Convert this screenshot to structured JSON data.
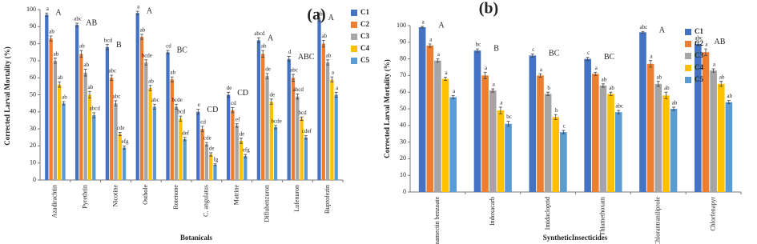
{
  "chart_data": [
    {
      "type": "bar",
      "panel_label": "(a)",
      "y_label": "Corrected Larval Mortality (%)",
      "x_label": "Botanicals",
      "categories": [
        "Azadirachtin",
        "Pyrethrin",
        "Nicotine",
        "Osthole",
        "Rotenone",
        "C. angulatus",
        "Matrine",
        "Diflubenzuron",
        "Lufenuron",
        "Buprofezin"
      ],
      "group_letters": [
        "A",
        "AB",
        "B",
        "A",
        "BC",
        "CD",
        "CD",
        "A",
        "ABC",
        "A"
      ],
      "series": [
        {
          "name": "C1",
          "color": "#4472c4",
          "values": [
            97,
            91,
            78,
            98,
            75,
            40,
            50,
            82,
            71,
            94
          ],
          "errors": [
            1,
            1,
            1.5,
            1,
            1,
            1.5,
            1.5,
            1.5,
            1.5,
            1
          ],
          "letters": [
            "a",
            "abc",
            "bcd",
            "a",
            "cd",
            "e",
            "de",
            "abcd",
            "d",
            "ab"
          ]
        },
        {
          "name": "C2",
          "color": "#ed7d31",
          "values": [
            83,
            74,
            60,
            84,
            59,
            30,
            41,
            74,
            60,
            80
          ],
          "errors": [
            1.5,
            2,
            1.5,
            1.5,
            1.5,
            1.5,
            1.5,
            2,
            2,
            2
          ],
          "letters": [
            "ab",
            "ab",
            "abc",
            "ab",
            "ab",
            "cd",
            "cd",
            "ab",
            "abc",
            "ab"
          ]
        },
        {
          "name": "C3",
          "color": "#a5a5a5",
          "values": [
            70,
            63,
            45,
            69,
            43,
            21,
            32,
            61,
            49,
            69
          ],
          "errors": [
            1.5,
            2,
            1.5,
            1.5,
            1.5,
            1,
            1,
            1.5,
            1.5,
            1.5
          ],
          "letters": [
            "ab",
            "ab",
            "abc",
            "bcde",
            "bcde",
            "cde",
            "ef",
            "de",
            "abcd",
            "ab"
          ]
        },
        {
          "name": "C4",
          "color": "#ffc000",
          "values": [
            56,
            50,
            27,
            54,
            36,
            15,
            23,
            46,
            36,
            59
          ],
          "errors": [
            1.5,
            2,
            1,
            1.5,
            1.5,
            1,
            1.5,
            1.5,
            1,
            1.5
          ],
          "letters": [
            "ab",
            "ab",
            "cde",
            "ab",
            "bcd",
            "de",
            "de",
            "de",
            "bcd",
            "a"
          ]
        },
        {
          "name": "C5",
          "color": "#5b9bd5",
          "values": [
            45,
            38,
            19,
            43,
            24,
            9,
            14,
            31,
            25,
            50
          ],
          "errors": [
            1,
            1.5,
            1,
            1.5,
            1,
            0.5,
            1,
            1,
            1,
            1.5
          ],
          "letters": [
            "ab",
            "abcd",
            "efg",
            "abc",
            "def",
            "fg",
            "efg",
            "bcde",
            "cdef",
            "a"
          ]
        }
      ],
      "ylim": [
        0,
        100
      ],
      "yticks": [
        0,
        10,
        20,
        30,
        40,
        50,
        60,
        70,
        80,
        90,
        100
      ],
      "legend": "right"
    },
    {
      "type": "bar",
      "panel_label": "(b)",
      "y_label": "Corrected Larval Mortality (%)",
      "x_label": "SyntheticInsecticides",
      "categories": [
        "Emamectin benzoate",
        "Indoxacarb",
        "Imidacloprid",
        "Thiamethoxam",
        "Chlorantraniliprole",
        "Chlorfenapyr"
      ],
      "group_letters": [
        "A",
        "B",
        "BC",
        "BC",
        "A",
        "AB"
      ],
      "series": [
        {
          "name": "C1",
          "color": "#4472c4",
          "values": [
            99,
            85,
            82,
            80,
            96,
            89
          ],
          "errors": [
            0.5,
            1,
            1,
            1,
            0.5,
            1
          ],
          "letters": [
            "a",
            "bc",
            "c",
            "c",
            "abc",
            "abc"
          ]
        },
        {
          "name": "C2",
          "color": "#ed7d31",
          "values": [
            88,
            70,
            70,
            71,
            77,
            84
          ],
          "errors": [
            1,
            2,
            1,
            1,
            2,
            2
          ],
          "letters": [
            "a",
            "a",
            "a",
            "a",
            "a",
            "a"
          ]
        },
        {
          "name": "C3",
          "color": "#a5a5a5",
          "values": [
            79,
            61,
            59,
            64,
            65,
            73
          ],
          "errors": [
            1,
            1,
            1,
            1,
            1.5,
            1
          ],
          "letters": [
            "a",
            "a",
            "b",
            "ab",
            "ab",
            "a"
          ]
        },
        {
          "name": "C4",
          "color": "#ffc000",
          "values": [
            68,
            49,
            45,
            59,
            58,
            65
          ],
          "errors": [
            1,
            2,
            1.5,
            1,
            2,
            1.5
          ],
          "letters": [
            "a",
            "a",
            "b",
            "ab",
            "ab",
            "ab"
          ]
        },
        {
          "name": "C5",
          "color": "#5b9bd5",
          "values": [
            57,
            41,
            36,
            48,
            50,
            54
          ],
          "errors": [
            1,
            1.5,
            1,
            1,
            1,
            1
          ],
          "letters": [
            "a",
            "bc",
            "c",
            "abc",
            "ab",
            "ab"
          ]
        }
      ],
      "ylim": [
        0,
        100
      ],
      "yticks": [
        0,
        10,
        20,
        30,
        40,
        50,
        60,
        70,
        80,
        90,
        100
      ],
      "legend": "upper right"
    }
  ]
}
